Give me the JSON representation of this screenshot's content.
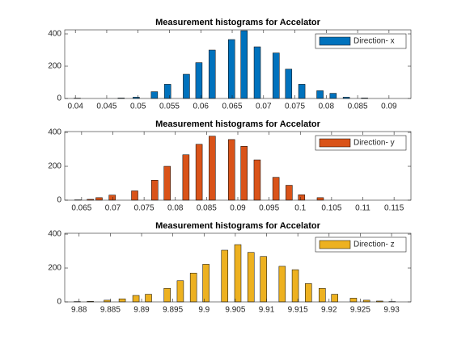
{
  "chart_data": [
    {
      "type": "bar",
      "title": "Measurement histograms for Accelator",
      "x": [
        0.0403,
        0.0473,
        0.0497,
        0.0526,
        0.0547,
        0.0577,
        0.0597,
        0.0618,
        0.0649,
        0.0669,
        0.069,
        0.072,
        0.074,
        0.0761,
        0.079,
        0.0811,
        0.0832,
        0.0861
      ],
      "series": [
        {
          "name": "Direction- x",
          "color": "#0072bd",
          "values": [
            2,
            3,
            8,
            42,
            88,
            150,
            222,
            300,
            365,
            420,
            320,
            282,
            182,
            88,
            48,
            32,
            8,
            3
          ]
        }
      ],
      "xlim": [
        0.0383,
        0.0935
      ],
      "ylim": [
        0,
        425
      ],
      "xticks": [
        0.04,
        0.045,
        0.05,
        0.055,
        0.06,
        0.065,
        0.07,
        0.075,
        0.08,
        0.085,
        0.09
      ],
      "yticks": [
        0,
        200,
        400
      ],
      "legend": "upper right"
    },
    {
      "type": "bar",
      "title": "Measurement histograms for Accelator",
      "x": [
        0.0644,
        0.0664,
        0.0678,
        0.0699,
        0.0735,
        0.0767,
        0.0787,
        0.0817,
        0.0838,
        0.0859,
        0.089,
        0.091,
        0.0931,
        0.0961,
        0.0982,
        0.1002,
        0.1032
      ],
      "series": [
        {
          "name": "Direction- y",
          "color": "#d95319",
          "values": [
            2,
            5,
            15,
            30,
            55,
            118,
            200,
            268,
            330,
            378,
            358,
            318,
            238,
            135,
            88,
            32,
            15
          ]
        }
      ],
      "xlim": [
        0.0623,
        0.1177
      ],
      "ylim": [
        0,
        405
      ],
      "xticks": [
        0.065,
        0.07,
        0.075,
        0.08,
        0.085,
        0.09,
        0.095,
        0.1,
        0.105,
        0.11,
        0.115
      ],
      "yticks": [
        0,
        200,
        400
      ],
      "legend": "upper right"
    },
    {
      "type": "bar",
      "title": "Measurement histograms for Accelator",
      "x": [
        9.8797,
        9.8818,
        9.8845,
        9.8869,
        9.8891,
        9.8911,
        9.8941,
        9.8962,
        9.8983,
        9.9003,
        9.9033,
        9.9054,
        9.9075,
        9.9095,
        9.9125,
        9.9146,
        9.9167,
        9.9189,
        9.9209,
        9.9239,
        9.926,
        9.9281,
        9.9301
      ],
      "series": [
        {
          "name": "Direction- z",
          "color": "#edb120",
          "values": [
            2,
            3,
            10,
            18,
            38,
            45,
            80,
            125,
            170,
            222,
            305,
            338,
            292,
            268,
            210,
            190,
            108,
            80,
            45,
            22,
            10,
            5,
            2
          ]
        }
      ],
      "xlim": [
        9.8777,
        9.9331
      ],
      "ylim": [
        0,
        405
      ],
      "xticks": [
        9.88,
        9.885,
        9.89,
        9.895,
        9.9,
        9.905,
        9.91,
        9.915,
        9.92,
        9.925,
        9.93
      ],
      "yticks": [
        0,
        200,
        400
      ],
      "legend": "upper right"
    }
  ]
}
